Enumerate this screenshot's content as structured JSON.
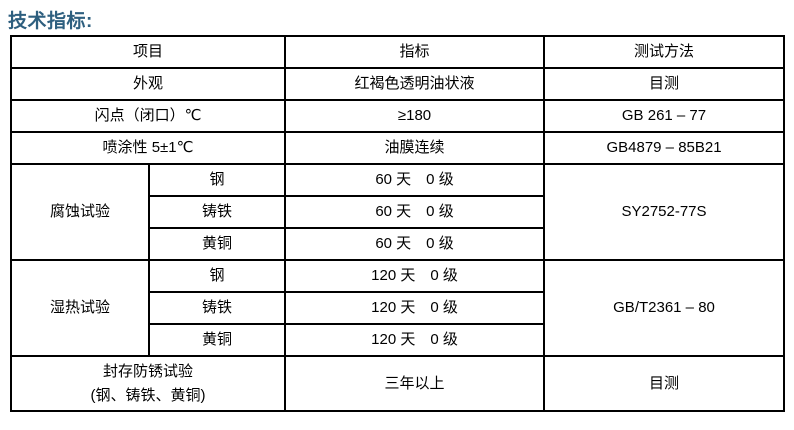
{
  "page_title": "技术指标:",
  "colors": {
    "title_text": "#2E5F7F",
    "table_border": "#000000",
    "body_text": "#000000",
    "background": "#FFFFFF"
  },
  "table": {
    "header": {
      "item": "项目",
      "spec": "指标",
      "method": "测试方法"
    },
    "rows": {
      "appearance": {
        "item": "外观",
        "spec": "红褐色透明油状液",
        "method": "目测"
      },
      "flash_point": {
        "item": "闪点（闭口）℃",
        "spec": "≥180",
        "method": "GB 261 – 77"
      },
      "sprayability": {
        "item": "喷涂性 5±1℃",
        "spec": "油膜连续",
        "method": "GB4879 – 85B21"
      },
      "corrosion": {
        "group": "腐蚀试验",
        "method": "SY2752-77S",
        "steel": {
          "item": "钢",
          "spec": "60 天　0 级"
        },
        "cast_iron": {
          "item": "铸铁",
          "spec": "60 天　0 级"
        },
        "brass": {
          "item": "黄铜",
          "spec": "60 天　0 级"
        }
      },
      "damp_heat": {
        "group": "湿热试验",
        "method": "GB/T2361 – 80",
        "steel": {
          "item": "钢",
          "spec": "120 天　0 级"
        },
        "cast_iron": {
          "item": "铸铁",
          "spec": "120 天　0 级"
        },
        "brass": {
          "item": "黄铜",
          "spec": "120 天　0 级"
        }
      },
      "sealed_rust": {
        "item_line1": "封存防锈试验",
        "item_line2": "(钢、铸铁、黄铜)",
        "spec": "三年以上",
        "method": "目测"
      }
    }
  }
}
